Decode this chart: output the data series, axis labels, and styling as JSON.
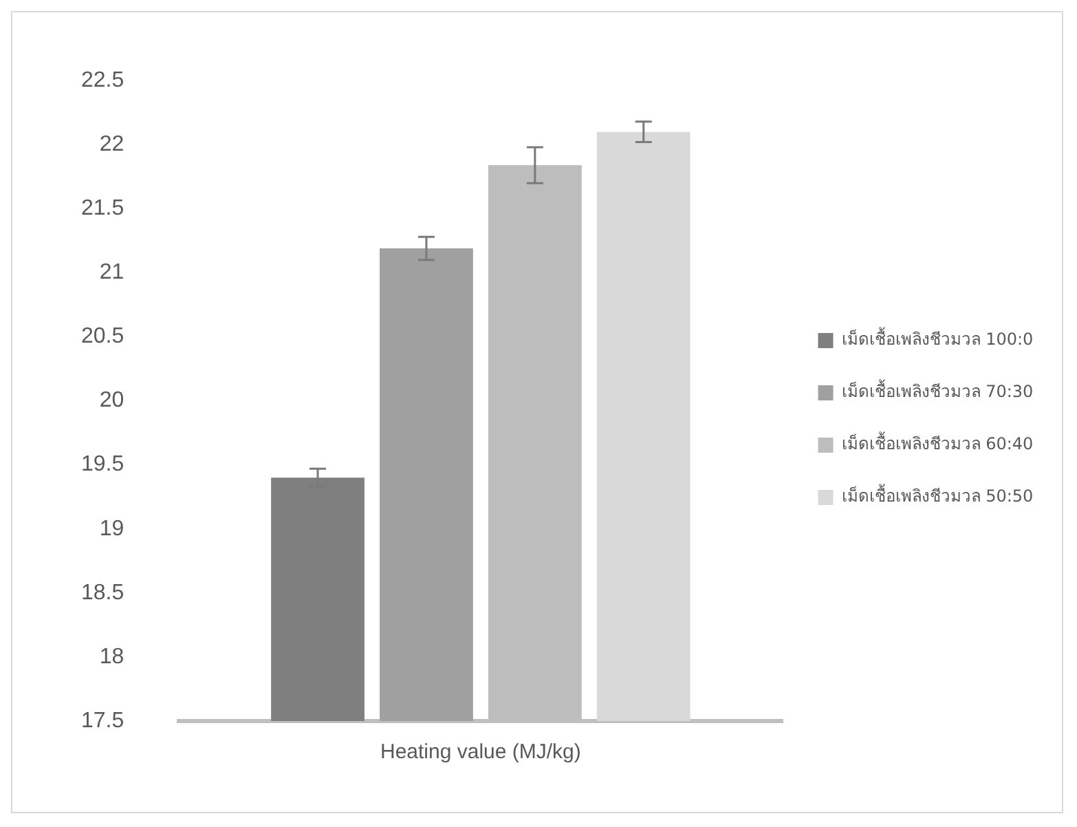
{
  "chart_data": {
    "type": "bar",
    "categories": [
      "Heating value (MJ/kg)"
    ],
    "series": [
      {
        "name": "เม็ดเชื้อเพลิงชีวมวล 100:0",
        "color": "#7f7f7f",
        "values": [
          19.4
        ],
        "errors": [
          0.07
        ]
      },
      {
        "name": "เม็ดเชื้อเพลิงชีวมวล 70:30",
        "color": "#a0a0a0",
        "values": [
          21.19
        ],
        "errors": [
          0.09
        ]
      },
      {
        "name": "เม็ดเชื้อเพลิงชีวมวล 60:40",
        "color": "#bdbdbd",
        "values": [
          21.84
        ],
        "errors": [
          0.14
        ]
      },
      {
        "name": "เม็ดเชื้อเพลิงชีวมวล 50:50",
        "color": "#d9d9d9",
        "values": [
          22.1
        ],
        "errors": [
          0.08
        ]
      }
    ],
    "ylim": [
      17.5,
      22.5
    ],
    "yticks": [
      17.5,
      18,
      18.5,
      19,
      19.5,
      20,
      20.5,
      21,
      21.5,
      22,
      22.5
    ],
    "grid": false,
    "legend": "right"
  }
}
